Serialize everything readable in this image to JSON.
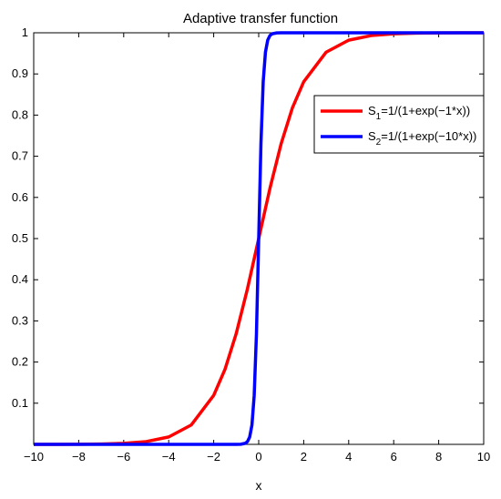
{
  "chart_data": {
    "type": "line",
    "title": "Adaptive transfer function",
    "xlabel": "x",
    "ylabel": "",
    "xlim": [
      -10,
      10
    ],
    "ylim": [
      0,
      1
    ],
    "xticks": [
      -10,
      -8,
      -6,
      -4,
      -2,
      0,
      2,
      4,
      6,
      8,
      10
    ],
    "yticks": [
      0.1,
      0.2,
      0.3,
      0.4,
      0.5,
      0.6,
      0.7,
      0.8,
      0.9,
      1
    ],
    "grid": false,
    "legend_position": "top-right",
    "series": [
      {
        "name_main": "S",
        "name_sub": "1",
        "name_rest": "=1/(1+exp(−1*x))",
        "color": "#ff0000",
        "x": [
          -10,
          -9,
          -8,
          -7,
          -6,
          -5,
          -4,
          -3,
          -2,
          -1.5,
          -1,
          -0.5,
          0,
          0.5,
          1,
          1.5,
          2,
          3,
          4,
          5,
          6,
          7,
          8,
          9,
          10
        ],
        "y": [
          5e-05,
          0.0001,
          0.0003,
          0.0009,
          0.0025,
          0.0067,
          0.018,
          0.047,
          0.119,
          0.182,
          0.269,
          0.378,
          0.5,
          0.622,
          0.731,
          0.818,
          0.881,
          0.953,
          0.982,
          0.9933,
          0.9975,
          0.9991,
          0.9997,
          0.9999,
          0.99995
        ]
      },
      {
        "name_main": "S",
        "name_sub": "2",
        "name_rest": "=1/(1+exp(−10*x))",
        "color": "#0000ff",
        "x": [
          -10,
          -2,
          -1,
          -0.8,
          -0.6,
          -0.5,
          -0.4,
          -0.3,
          -0.2,
          -0.1,
          0,
          0.1,
          0.2,
          0.3,
          0.4,
          0.5,
          0.6,
          0.8,
          1,
          2,
          10
        ],
        "y": [
          0,
          0,
          5e-05,
          0.0003,
          0.0025,
          0.0067,
          0.018,
          0.047,
          0.119,
          0.269,
          0.5,
          0.731,
          0.881,
          0.953,
          0.982,
          0.9933,
          0.9975,
          0.9997,
          0.99995,
          1,
          1
        ]
      }
    ]
  }
}
